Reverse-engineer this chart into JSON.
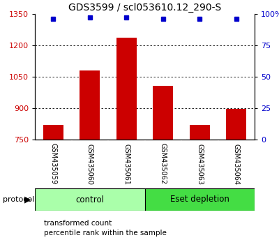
{
  "title": "GDS3599 / scl053610.12_290-S",
  "samples": [
    "GSM435059",
    "GSM435060",
    "GSM435061",
    "GSM435062",
    "GSM435063",
    "GSM435064"
  ],
  "bar_values": [
    820,
    1080,
    1235,
    1005,
    820,
    895
  ],
  "percentile_values": [
    96,
    97,
    97,
    96,
    96,
    96
  ],
  "bar_color": "#cc0000",
  "dot_color": "#0000cc",
  "ylim_left": [
    750,
    1350
  ],
  "ylim_right": [
    0,
    100
  ],
  "yticks_left": [
    750,
    900,
    1050,
    1200,
    1350
  ],
  "yticks_right": [
    0,
    25,
    50,
    75,
    100
  ],
  "ytick_labels_right": [
    "0",
    "25",
    "50",
    "75",
    "100%"
  ],
  "groups": [
    {
      "label": "control",
      "samples": [
        0,
        1,
        2
      ],
      "color": "#aaffaa"
    },
    {
      "label": "Eset depletion",
      "samples": [
        3,
        4,
        5
      ],
      "color": "#44dd44"
    }
  ],
  "protocol_label": "protocol",
  "legend_bar_label": "transformed count",
  "legend_dot_label": "percentile rank within the sample",
  "bar_width": 0.55,
  "tick_label_color_left": "#cc0000",
  "tick_label_color_right": "#0000cc",
  "title_fontsize": 10,
  "tick_fontsize": 8,
  "sample_label_fontsize": 7,
  "group_fontsize": 8.5,
  "legend_fontsize": 7.5,
  "label_area_color": "#c8c8c8",
  "group_divider_color": "#888888"
}
